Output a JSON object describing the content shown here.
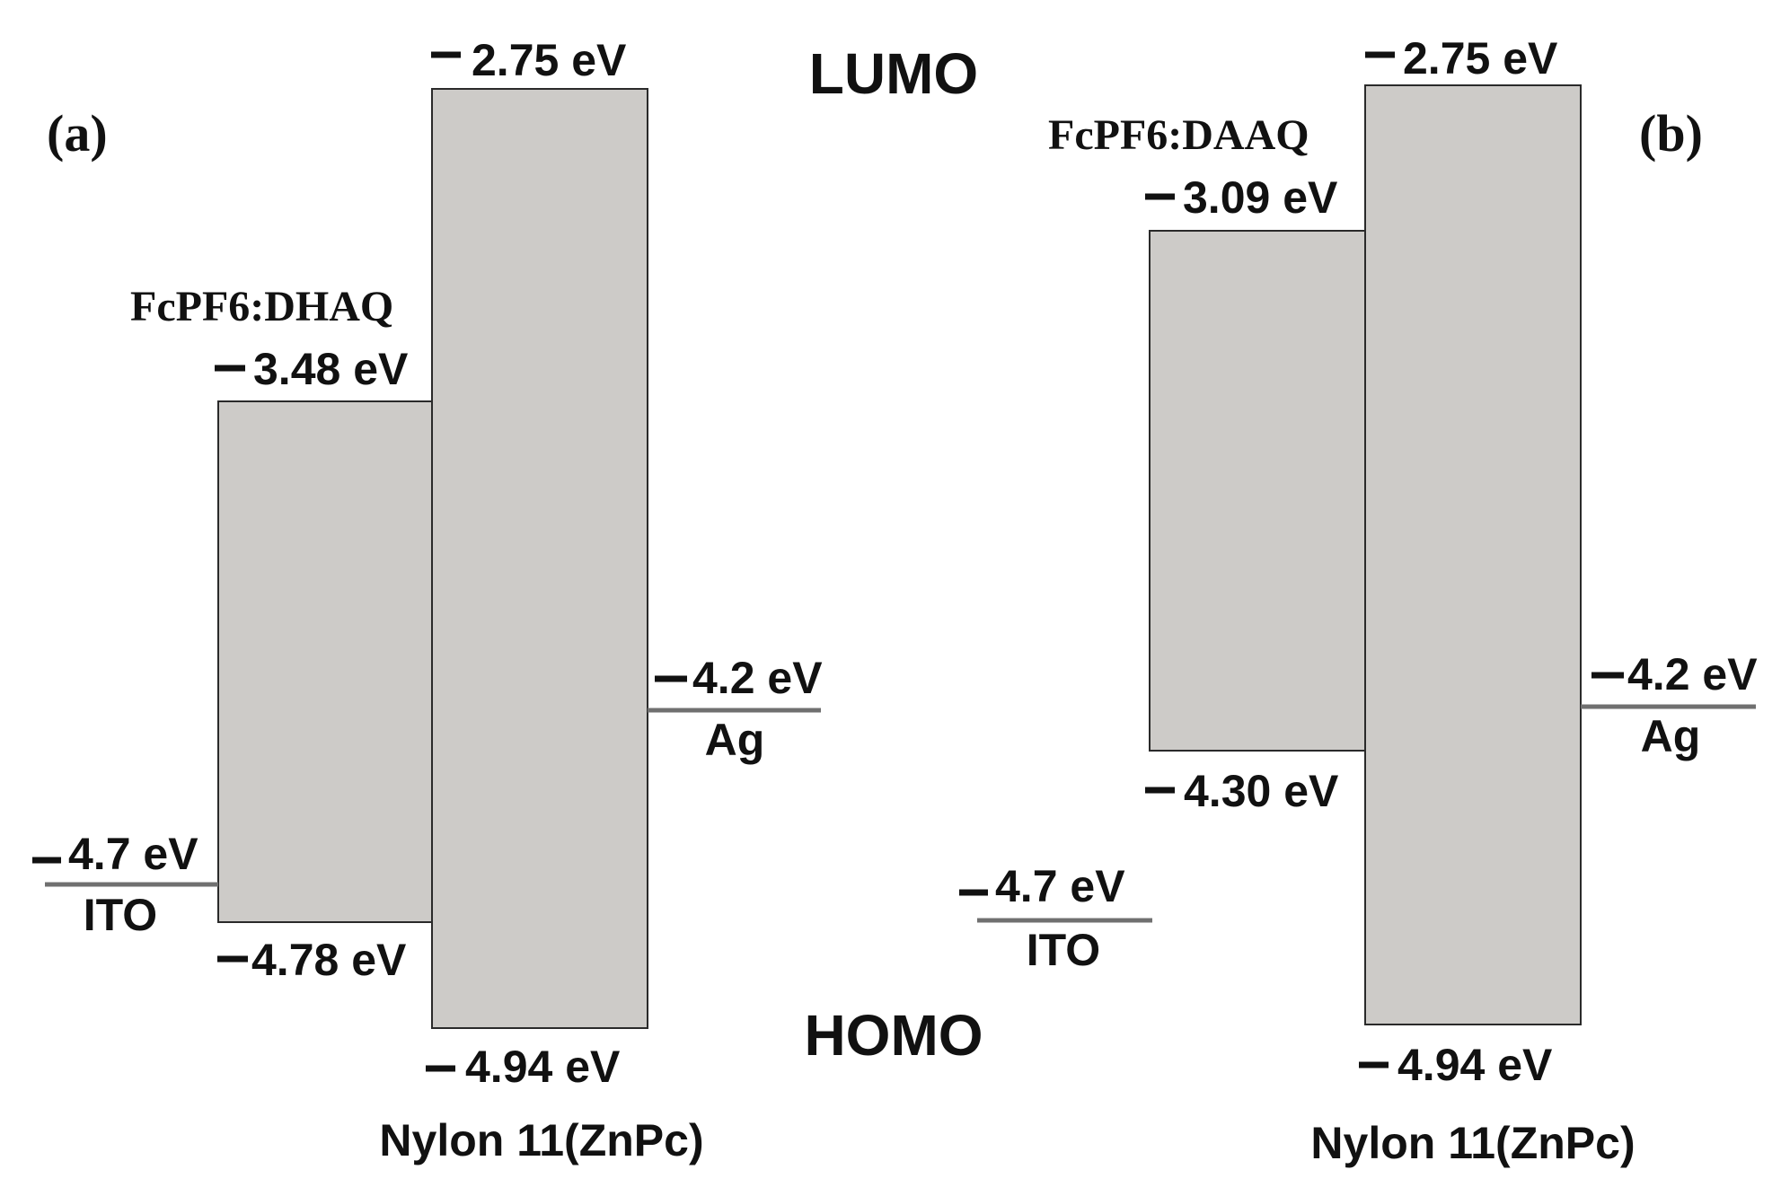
{
  "labels": {
    "lumo": "LUMO",
    "homo": "HOMO"
  },
  "panel_a": {
    "tag": "(a)",
    "host": {
      "name": "Nylon 11(ZnPc)",
      "lumo": "2.75 eV",
      "homo": "4.94 eV"
    },
    "blend": {
      "name": "FcPF6:DHAQ",
      "lumo": "3.48 eV",
      "homo": "4.78 eV"
    },
    "anode": {
      "name": "ITO",
      "level": "4.7 eV"
    },
    "cathode": {
      "name": "Ag",
      "level": "4.2 eV"
    }
  },
  "panel_b": {
    "tag": "(b)",
    "host": {
      "name": "Nylon 11(ZnPc)",
      "lumo": "2.75 eV",
      "homo": "4.94 eV"
    },
    "blend": {
      "name": "FcPF6:DAAQ",
      "lumo": "3.09 eV",
      "homo": "4.30 eV"
    },
    "anode": {
      "name": "ITO",
      "level": "4.7 eV"
    },
    "cathode": {
      "name": "Ag",
      "level": "4.2 eV"
    }
  },
  "colors": {
    "box_fill": "#cdcbc8",
    "box_stroke": "#2a2a2a",
    "electrode_line": "#707070",
    "text": "#111111"
  }
}
